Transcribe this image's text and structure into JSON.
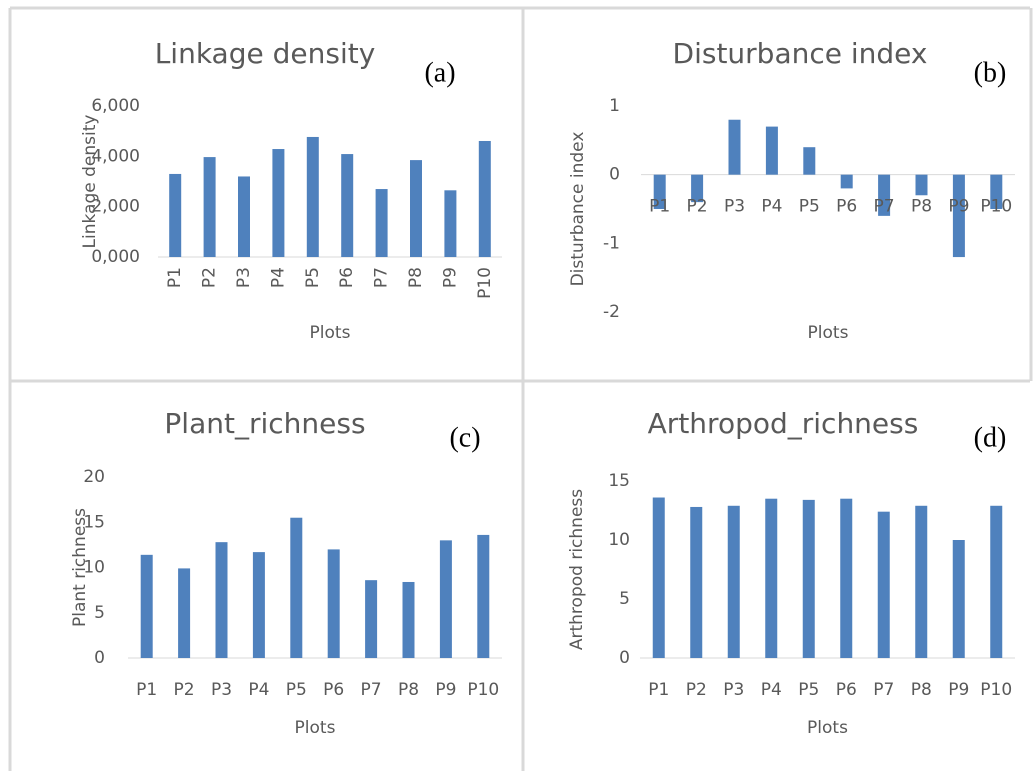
{
  "chart_data": [
    {
      "type": "bar",
      "title": "Linkage density",
      "annotation": "(a)",
      "x_label": "Plots",
      "y_label": "Linkage density",
      "categories": [
        "P1",
        "P2",
        "P3",
        "P4",
        "P5",
        "P6",
        "P7",
        "P8",
        "P9",
        "P10"
      ],
      "values": [
        3300,
        3970,
        3200,
        4290,
        4770,
        4090,
        2700,
        3850,
        2650,
        4610
      ],
      "color": "#4f81bd",
      "ylim": [
        0,
        6000
      ],
      "yticks": [
        {
          "value": 0,
          "label": "0,000"
        },
        {
          "value": 2000,
          "label": "2,000"
        },
        {
          "value": 4000,
          "label": "4,000"
        },
        {
          "value": 6000,
          "label": "6,000"
        }
      ],
      "xtick_rotation": -90
    },
    {
      "type": "bar",
      "title": "Disturbance index",
      "annotation": "(b)",
      "x_label": "Plots",
      "y_label": "Disturbance index",
      "categories": [
        "P1",
        "P2",
        "P3",
        "P4",
        "P5",
        "P6",
        "P7",
        "P8",
        "P9",
        "P10"
      ],
      "values": [
        -0.5,
        -0.4,
        0.8,
        0.7,
        0.4,
        -0.2,
        -0.6,
        -0.3,
        -1.2,
        -0.5
      ],
      "color": "#4f81bd",
      "ylim": [
        -2,
        1
      ],
      "yticks": [
        -2,
        -1,
        0,
        1
      ]
    },
    {
      "type": "bar",
      "title": "Plant_richness",
      "annotation": "(c)",
      "x_label": "Plots",
      "y_label": "Plant richness",
      "categories": [
        "P1",
        "P2",
        "P3",
        "P4",
        "P5",
        "P6",
        "P7",
        "P8",
        "P9",
        "P10"
      ],
      "values": [
        11.4,
        9.9,
        12.8,
        11.7,
        15.5,
        12,
        8.6,
        8.4,
        13,
        13.6
      ],
      "color": "#4f81bd",
      "ylim": [
        0,
        20
      ],
      "yticks": [
        0,
        5,
        10,
        15,
        20
      ]
    },
    {
      "type": "bar",
      "title": "Arthropod_richness",
      "annotation": "(d)",
      "x_label": "Plots",
      "y_label": "Arthropod richness",
      "categories": [
        "P1",
        "P2",
        "P3",
        "P4",
        "P5",
        "P6",
        "P7",
        "P8",
        "P9",
        "P10"
      ],
      "values": [
        13.6,
        12.8,
        12.9,
        13.5,
        13.4,
        13.5,
        12.4,
        12.9,
        10,
        12.9
      ],
      "color": "#4f81bd",
      "ylim": [
        0,
        15
      ],
      "yticks": [
        0,
        5,
        10,
        15
      ]
    }
  ]
}
